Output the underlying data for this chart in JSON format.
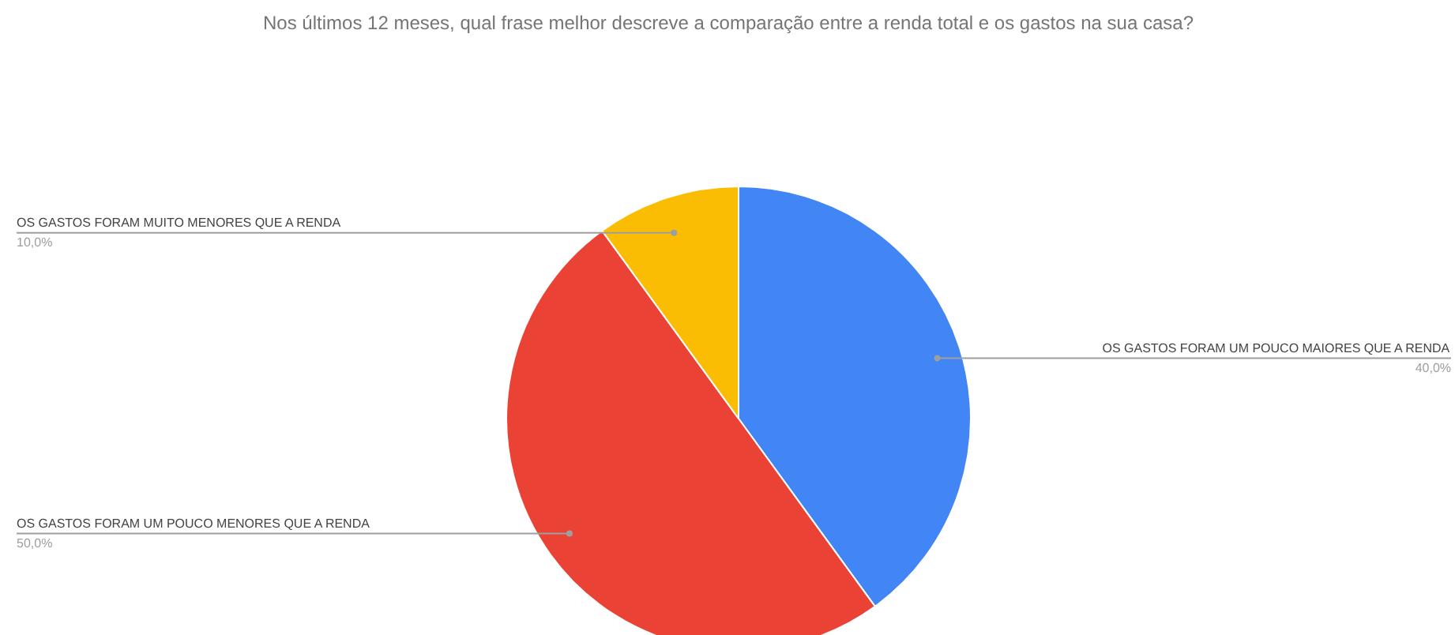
{
  "chart_data": {
    "type": "pie",
    "title": "Nos últimos 12 meses, qual frase melhor descreve a comparação entre a renda total e os gastos na sua casa?",
    "categories": [
      "OS GASTOS FORAM UM POUCO MAIORES QUE A RENDA",
      "OS GASTOS FORAM UM POUCO MENORES QUE A RENDA",
      "OS GASTOS FORAM MUITO MENORES QUE A RENDA"
    ],
    "values": [
      40,
      50,
      10
    ],
    "colors": [
      "#4285f4",
      "#ea4335",
      "#fbbc04"
    ],
    "value_labels": [
      "40,0%",
      "50,0%",
      "10,0%"
    ]
  }
}
